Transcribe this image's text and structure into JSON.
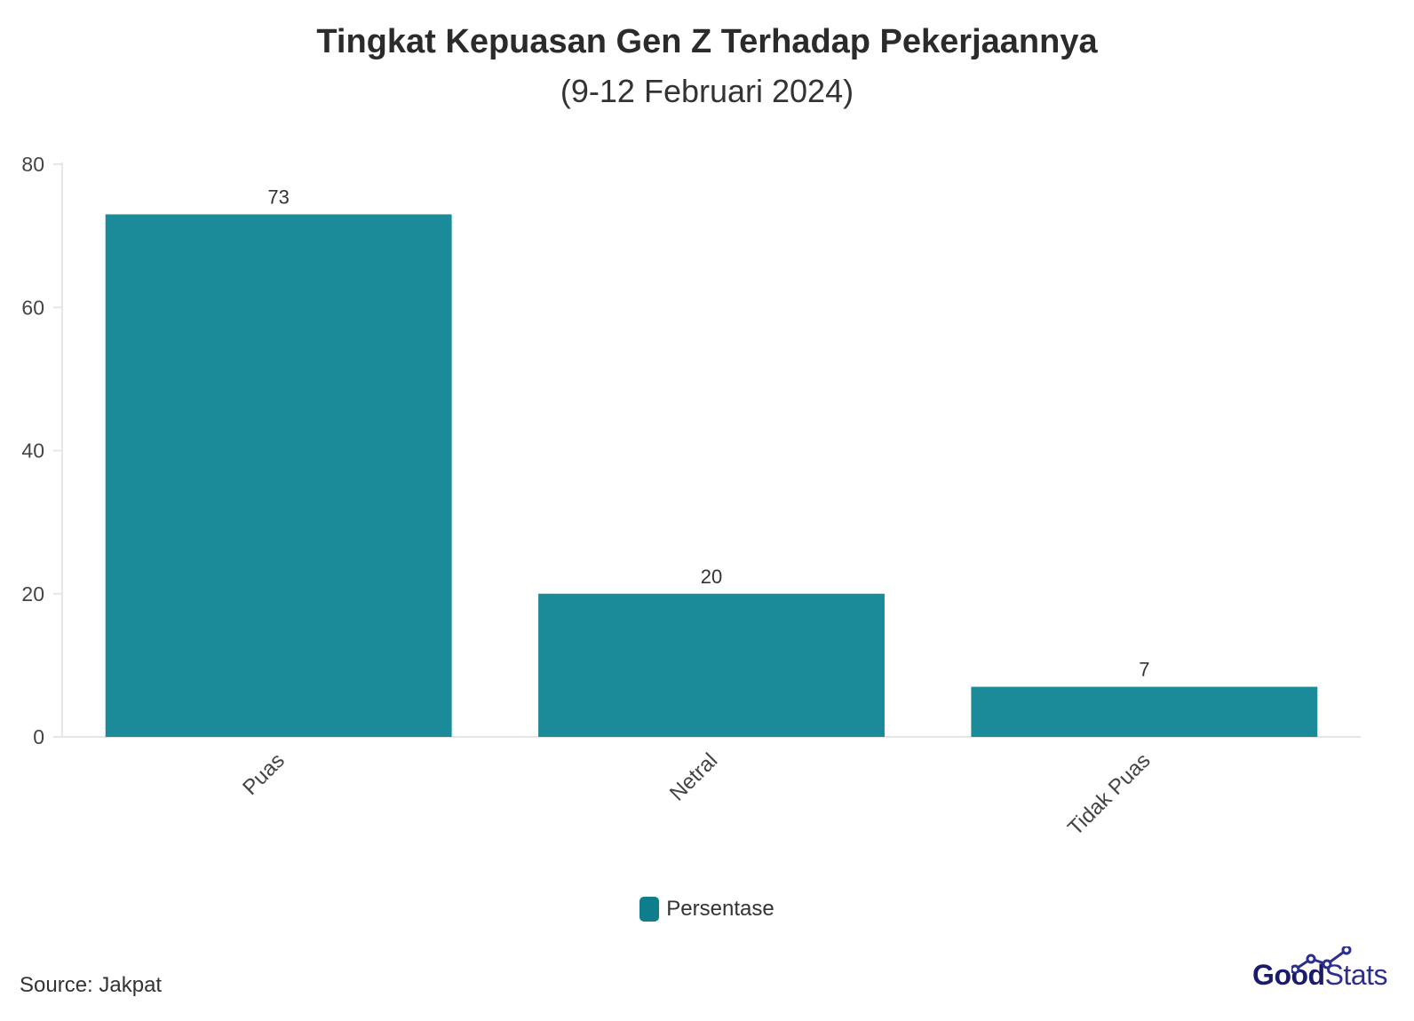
{
  "header": {
    "title": "Tingkat Kepuasan Gen Z Terhadap Pekerjaannya",
    "subtitle": "(9-12 Februari 2024)"
  },
  "legend": {
    "label": "Persentase"
  },
  "footer": {
    "source": "Source: Jakpat",
    "brand_good": "Good",
    "brand_stats": "Stats"
  },
  "colors": {
    "bar": "#1b8a99",
    "legend_swatch": "#0e7d8c",
    "axis": "#e6e6e6",
    "brand_dark": "#1b1b6b",
    "brand_light": "#2d2f8f"
  },
  "icons": {
    "brand_mark": "connected-dots-chart-icon"
  },
  "chart_data": {
    "type": "bar",
    "categories": [
      "Puas",
      "Netral",
      "Tidak Puas"
    ],
    "series": [
      {
        "name": "Persentase",
        "values": [
          73,
          20,
          7
        ]
      }
    ],
    "data_labels": [
      "73",
      "20",
      "7"
    ],
    "ylim": [
      0,
      80
    ],
    "yticks": [
      0,
      20,
      40,
      60,
      80
    ],
    "xlabel": "",
    "ylabel": "",
    "grid": false,
    "legend_position": "bottom-center",
    "x_tick_rotation": "45-degrees"
  }
}
